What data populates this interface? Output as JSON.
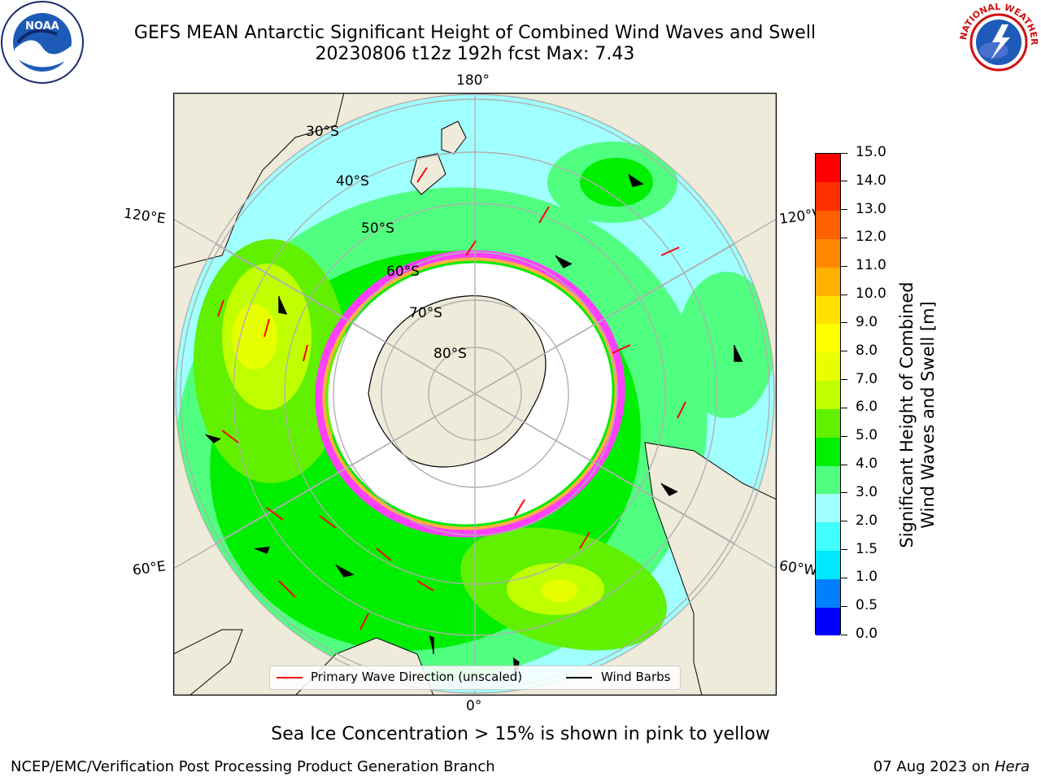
{
  "header": {
    "title_line1": "GEFS MEAN Antarctic Significant Height of Combined Wind Waves and Swell",
    "title_line2": "20230806 t12z 192h fcst   Max: 7.43"
  },
  "logos": {
    "left": "noaa-logo",
    "left_text": "NOAA",
    "right": "nws-logo",
    "right_text": "NATIONAL WEATHER SERVICE"
  },
  "map": {
    "projection": "south-polar-stereographic",
    "lat_labels": [
      "30°S",
      "40°S",
      "50°S",
      "60°S",
      "70°S",
      "80°S"
    ],
    "lon_labels": [
      "180°",
      "120°E",
      "120°W",
      "60°E",
      "60°W",
      "0°"
    ],
    "colors": {
      "land": "#efebda",
      "ocean_lowest": "#ffffff",
      "ice_edge": [
        "#ff40ff",
        "#ff8cc6",
        "#ffb040",
        "#ffe070"
      ],
      "coastline": "#000000",
      "grid": "#b0b0b0",
      "wave_arrow": "#ff0000",
      "wind_barb": "#000000"
    }
  },
  "legend": {
    "items": [
      {
        "label": "Primary Wave Direction (unscaled)",
        "color": "#ff0000"
      },
      {
        "label": "Wind Barbs",
        "color": "#000000"
      }
    ]
  },
  "colorbar": {
    "label_line1": "Significant Height of Combined",
    "label_line2": "Wind Waves and Swell [m]",
    "min": 0.0,
    "max": 15.0,
    "tick_labels": [
      "0.0",
      "0.5",
      "1.0",
      "1.5",
      "2.0",
      "3.0",
      "4.0",
      "5.0",
      "6.0",
      "7.0",
      "8.0",
      "9.0",
      "10.0",
      "11.0",
      "12.0",
      "13.0",
      "14.0",
      "15.0"
    ],
    "colors": [
      "#0000ff",
      "#0080ff",
      "#00e8ff",
      "#40ffff",
      "#a0ffff",
      "#50ff80",
      "#00ee00",
      "#60f000",
      "#c0ff00",
      "#e8ff00",
      "#ffff00",
      "#ffe000",
      "#ffb000",
      "#ff8800",
      "#ff6000",
      "#ff3000",
      "#ff0000"
    ]
  },
  "footer": {
    "note": "Sea Ice Concentration > 15% is shown in pink to yellow",
    "credit": "NCEP/EMC/Verification Post Processing Product Generation Branch",
    "date_prefix": "07 Aug 2023 on ",
    "date_machine": "Hera"
  }
}
